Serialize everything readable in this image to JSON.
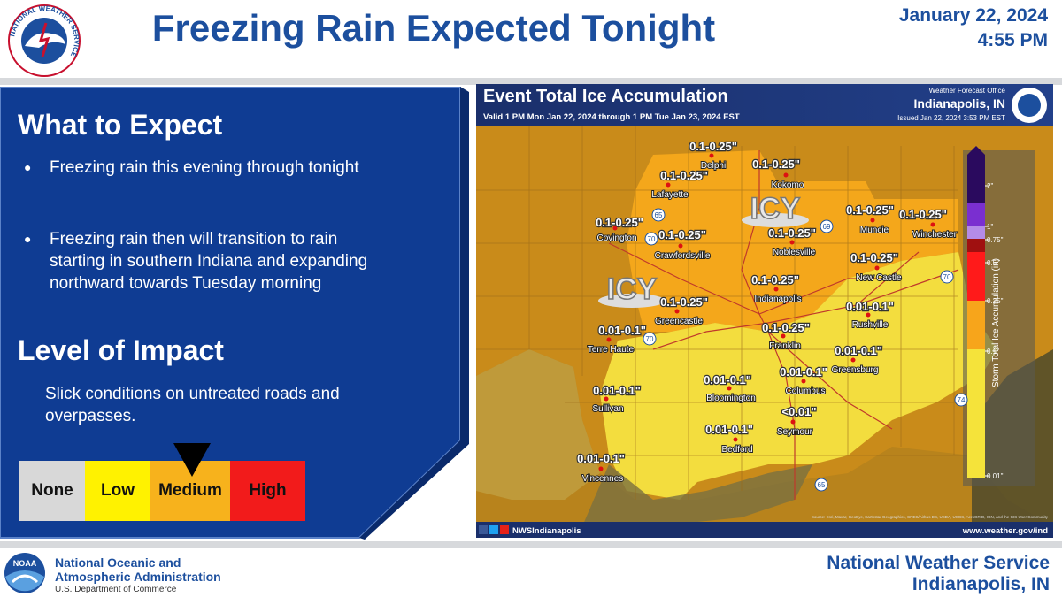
{
  "header": {
    "logo_text": "NATIONAL WEATHER SERVICE",
    "title": "Freezing Rain Expected Tonight",
    "date": "January 22, 2024",
    "time": "4:55 PM"
  },
  "panel": {
    "heading": "What to Expect",
    "bullets": [
      "Freezing rain this evening  through tonight",
      "Freezing rain then will transition to rain starting in southern Indiana and expanding northward towards Tuesday morning"
    ],
    "impact_heading": "Level of Impact",
    "impact_text": "Slick conditions on untreated roads and overpasses.",
    "impact_levels": [
      "None",
      "Low",
      "Medium",
      "High"
    ]
  },
  "map": {
    "title": "Event Total Ice Accumulation",
    "valid": "Valid 1 PM Mon Jan 22, 2024 through 1 PM Tue Jan 23, 2024 EST",
    "office_label": "Weather Forecast Office",
    "office": "Indianapolis, IN",
    "issued": "Issued Jan 22, 2024 3:53 PM EST",
    "icy_labels": [
      "ICY",
      "ICY"
    ],
    "locations": [
      {
        "name": "Delphi",
        "amount": "0.1-0.25\""
      },
      {
        "name": "Kokomo",
        "amount": "0.1-0.25\""
      },
      {
        "name": "Lafayette",
        "amount": "0.1-0.25\""
      },
      {
        "name": "Covington",
        "amount": "0.1-0.25\""
      },
      {
        "name": "Crawfordsville",
        "amount": "0.1-0.25\""
      },
      {
        "name": "Noblesville",
        "amount": "0.1-0.25\""
      },
      {
        "name": "Muncie",
        "amount": "0.1-0.25\""
      },
      {
        "name": "Winchester",
        "amount": "0.1-0.25\""
      },
      {
        "name": "New Castle",
        "amount": "0.1-0.25\""
      },
      {
        "name": "Indianapolis",
        "amount": "0.1-0.25\""
      },
      {
        "name": "Greencastle",
        "amount": "0.1-0.25\""
      },
      {
        "name": "Rushville",
        "amount": "0.01-0.1\""
      },
      {
        "name": "Terre Haute",
        "amount": "0.01-0.1\""
      },
      {
        "name": "Franklin",
        "amount": "0.1-0.25\""
      },
      {
        "name": "Greensburg",
        "amount": "0.01-0.1\""
      },
      {
        "name": "Columbus",
        "amount": "0.01-0.1\""
      },
      {
        "name": "Sullivan",
        "amount": "0.01-0.1\""
      },
      {
        "name": "Bloomington",
        "amount": "0.01-0.1\""
      },
      {
        "name": "Seymour",
        "amount": "<0.01\""
      },
      {
        "name": "Bedford",
        "amount": "0.01-0.1\""
      },
      {
        "name": "Vincennes",
        "amount": "0.01-0.1\""
      }
    ],
    "highways": [
      "65",
      "70",
      "69",
      "70",
      "70",
      "74",
      "65"
    ],
    "legend_title": "Storm Total Ice Accumulation (in)",
    "legend_ticks": [
      "2\"",
      "1\"",
      "0.75\"",
      "0.5\"",
      "0.25\"",
      "0.1\"",
      "0.01\""
    ],
    "social": "NWSIndianapolis",
    "url": "www.weather.gov/ind",
    "source": "Source: Esri, Maxar, GeoEye, Earthstar Geographics, CNES/Airbus DS, USDA, USGS, AeroGRID, IGN, and the GIS User Community"
  },
  "footer": {
    "noaa_logo": "NOAA",
    "noaa_line1": "National Oceanic and",
    "noaa_line2": "Atmospheric Administration",
    "noaa_line3": "U.S. Department of Commerce",
    "nws_line1": "National Weather Service",
    "nws_line2": "Indianapolis, IN"
  }
}
